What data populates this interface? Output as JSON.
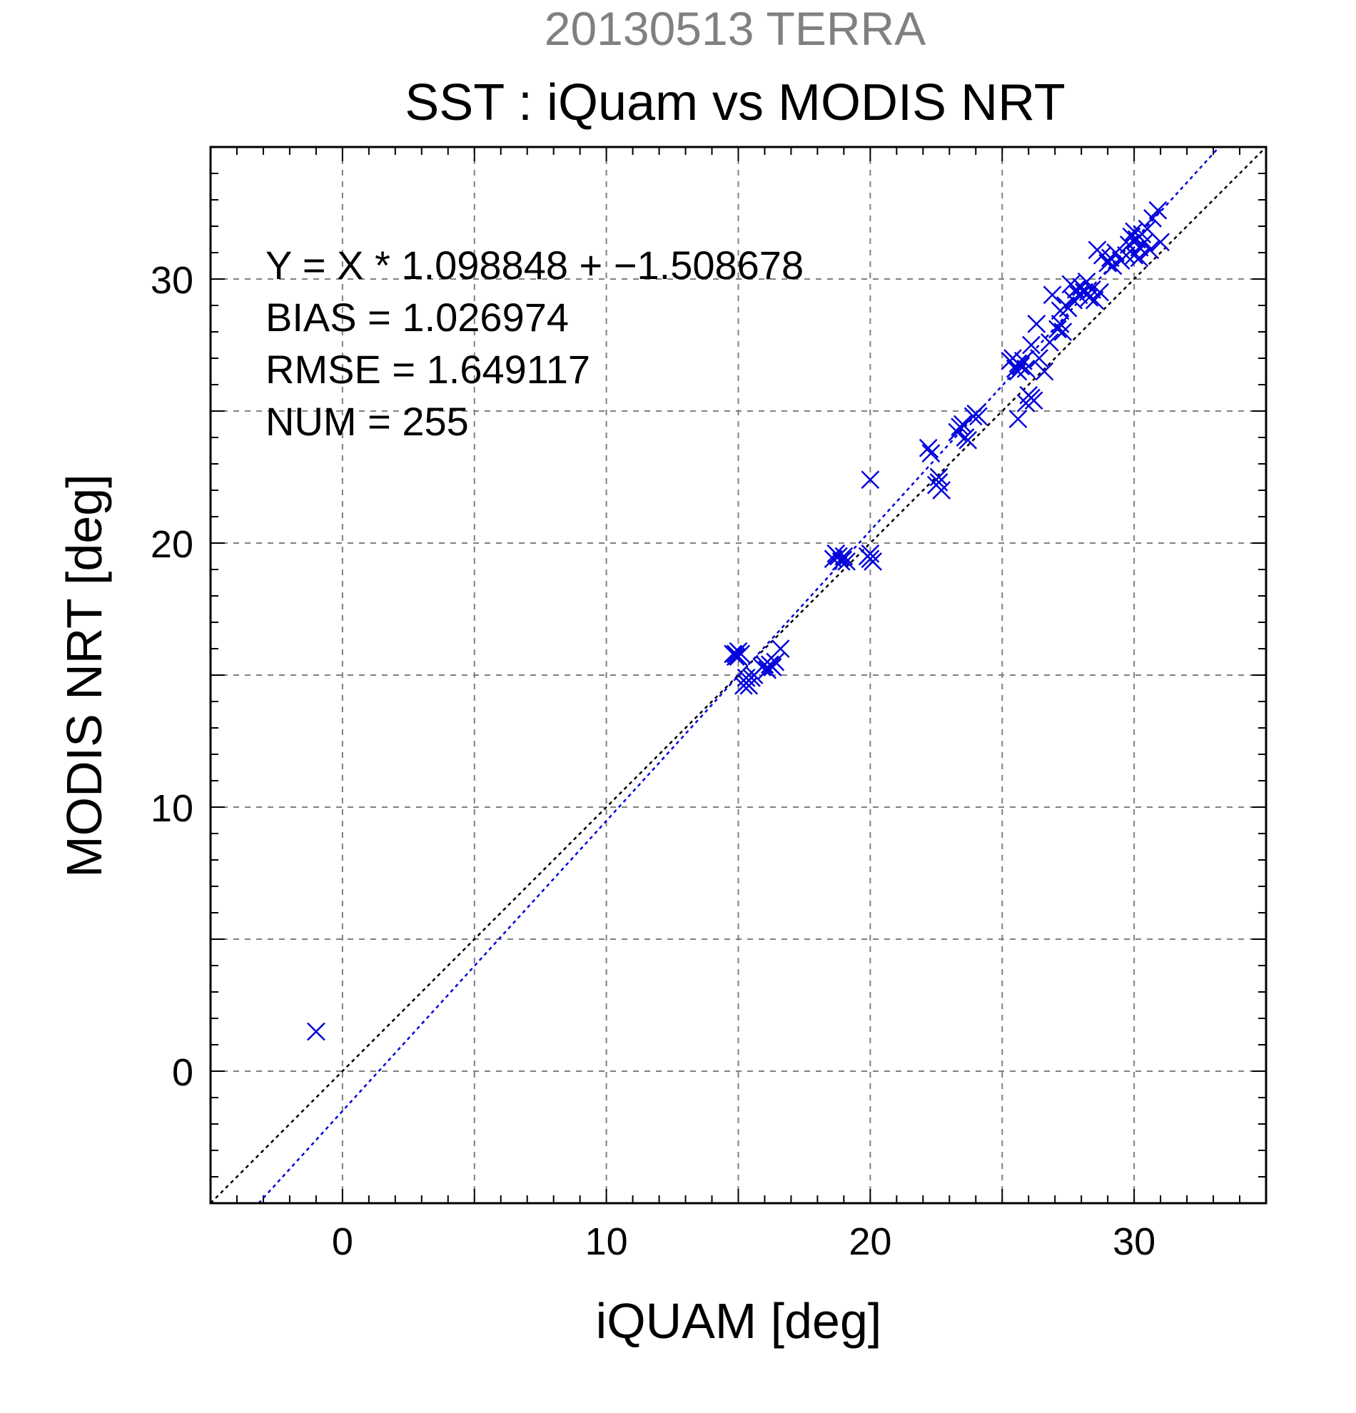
{
  "chart_data": {
    "type": "scatter",
    "subtitle": "20130513 TERRA",
    "title": "SST : iQuam vs MODIS NRT",
    "xlabel": "iQUAM [deg]",
    "ylabel": "MODIS NRT [deg]",
    "xlim": [
      -5,
      35
    ],
    "ylim": [
      -5,
      35
    ],
    "xticks": [
      0,
      10,
      20,
      30
    ],
    "yticks": [
      0,
      10,
      20,
      30
    ],
    "grid": true,
    "stats": [
      "Y = X * 1.098848 + −1.508678",
      "BIAS = 1.026974",
      "RMSE = 1.649117",
      "NUM = 255"
    ],
    "fit": {
      "slope": 1.098848,
      "intercept": -1.508678,
      "color": "#0000dd"
    },
    "identity_line_color": "#000000",
    "marker_color": "#0000dd",
    "series": [
      {
        "marker": "x",
        "points": [
          [
            -1.0,
            1.5
          ],
          [
            14.8,
            15.8
          ],
          [
            14.9,
            15.8
          ],
          [
            15.0,
            15.7
          ],
          [
            15.1,
            15.8
          ],
          [
            15.0,
            15.9
          ],
          [
            14.9,
            15.7
          ],
          [
            15.2,
            14.6
          ],
          [
            15.3,
            14.7
          ],
          [
            15.4,
            14.6
          ],
          [
            15.3,
            14.9
          ],
          [
            15.6,
            15.0
          ],
          [
            15.5,
            14.9
          ],
          [
            15.9,
            15.3
          ],
          [
            16.0,
            15.4
          ],
          [
            16.1,
            15.2
          ],
          [
            16.2,
            15.4
          ],
          [
            16.3,
            15.3
          ],
          [
            16.4,
            15.5
          ],
          [
            16.6,
            16.0
          ],
          [
            18.6,
            19.4
          ],
          [
            18.8,
            19.5
          ],
          [
            18.9,
            19.3
          ],
          [
            19.0,
            19.5
          ],
          [
            18.7,
            19.6
          ],
          [
            19.1,
            19.3
          ],
          [
            20.0,
            19.4
          ],
          [
            20.0,
            19.6
          ],
          [
            20.1,
            19.3
          ],
          [
            19.9,
            19.5
          ],
          [
            20.0,
            22.4
          ],
          [
            22.2,
            23.6
          ],
          [
            22.3,
            23.4
          ],
          [
            22.5,
            22.2
          ],
          [
            22.6,
            22.3
          ],
          [
            22.7,
            22.0
          ],
          [
            22.6,
            22.5
          ],
          [
            23.3,
            24.2
          ],
          [
            23.5,
            24.5
          ],
          [
            23.6,
            24.0
          ],
          [
            23.7,
            23.9
          ],
          [
            23.9,
            24.8
          ],
          [
            24.0,
            24.9
          ],
          [
            23.4,
            24.4
          ],
          [
            24.1,
            24.8
          ],
          [
            25.3,
            26.9
          ],
          [
            25.4,
            27.0
          ],
          [
            25.5,
            26.6
          ],
          [
            25.6,
            26.8
          ],
          [
            25.7,
            26.7
          ],
          [
            25.6,
            26.5
          ],
          [
            25.8,
            26.9
          ],
          [
            25.9,
            26.6
          ],
          [
            25.6,
            24.7
          ],
          [
            25.9,
            25.3
          ],
          [
            26.1,
            25.5
          ],
          [
            26.2,
            25.4
          ],
          [
            26.0,
            25.6
          ],
          [
            26.1,
            27.5
          ],
          [
            26.3,
            28.3
          ],
          [
            26.4,
            27.0
          ],
          [
            26.6,
            26.5
          ],
          [
            26.8,
            27.6
          ],
          [
            26.9,
            29.4
          ],
          [
            27.1,
            28.1
          ],
          [
            27.2,
            28.3
          ],
          [
            27.3,
            28.0
          ],
          [
            27.2,
            28.8
          ],
          [
            27.4,
            29.0
          ],
          [
            27.5,
            28.9
          ],
          [
            27.6,
            29.8
          ],
          [
            27.7,
            29.2
          ],
          [
            27.8,
            29.6
          ],
          [
            27.9,
            29.4
          ],
          [
            28.0,
            29.7
          ],
          [
            28.1,
            29.5
          ],
          [
            28.2,
            29.9
          ],
          [
            28.3,
            29.3
          ],
          [
            28.4,
            29.6
          ],
          [
            28.5,
            29.2
          ],
          [
            28.7,
            29.5
          ],
          [
            28.6,
            31.1
          ],
          [
            28.8,
            30.9
          ],
          [
            29.0,
            30.6
          ],
          [
            29.1,
            30.8
          ],
          [
            29.2,
            30.5
          ],
          [
            29.3,
            31.0
          ],
          [
            29.5,
            30.7
          ],
          [
            29.7,
            30.9
          ],
          [
            29.8,
            31.3
          ],
          [
            29.9,
            31.6
          ],
          [
            30.0,
            31.8
          ],
          [
            30.1,
            31.5
          ],
          [
            30.2,
            31.2
          ],
          [
            30.3,
            31.7
          ],
          [
            30.4,
            31.4
          ],
          [
            30.5,
            31.9
          ],
          [
            30.6,
            31.1
          ],
          [
            30.7,
            32.3
          ],
          [
            30.9,
            32.6
          ],
          [
            31.0,
            31.4
          ],
          [
            30.0,
            30.9
          ],
          [
            30.2,
            30.8
          ]
        ]
      }
    ]
  }
}
